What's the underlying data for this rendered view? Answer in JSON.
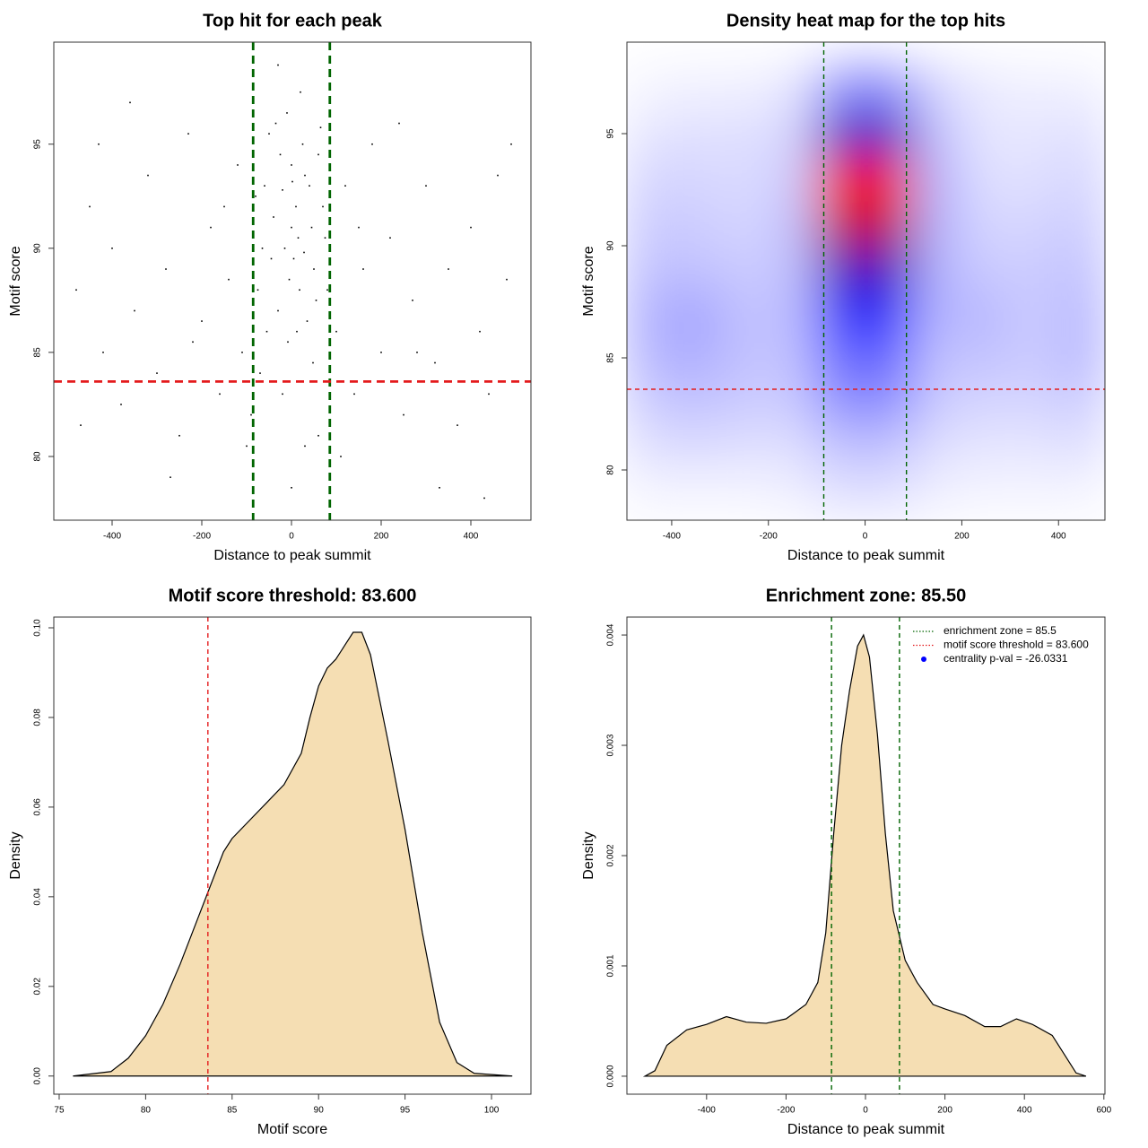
{
  "chart_data": [
    {
      "type": "scatter",
      "title": "Top hit for each peak",
      "xlabel": "Distance to peak summit",
      "ylabel": "Motif score",
      "xlim": [
        -530,
        534
      ],
      "ylim": [
        76.94,
        99.9
      ],
      "xticks": [
        -400,
        -200,
        0,
        200,
        400
      ],
      "yticks": [
        80,
        85,
        90,
        95
      ],
      "color": "#000000",
      "x": [
        -60,
        -40,
        -20,
        0,
        15,
        30,
        50,
        70,
        -75,
        -10,
        5,
        25,
        -30,
        45,
        60,
        -50,
        10,
        -5,
        35,
        -65,
        80,
        20,
        -25,
        0,
        40,
        -45,
        55,
        -15,
        12,
        65,
        -80,
        28,
        -35,
        48,
        -55,
        2,
        18,
        -8,
        75,
        -70,
        -480,
        -450,
        -420,
        -400,
        -380,
        -350,
        -320,
        -300,
        -280,
        -250,
        -230,
        -200,
        -180,
        -160,
        -140,
        -120,
        -110,
        -100,
        -470,
        -430,
        -360,
        -270,
        -220,
        -150,
        100,
        120,
        140,
        160,
        180,
        200,
        220,
        250,
        270,
        300,
        320,
        350,
        370,
        400,
        420,
        440,
        460,
        480,
        490,
        110,
        240,
        330,
        430,
        150,
        280,
        -90,
        60,
        -20,
        30,
        0,
        -30
      ],
      "y": [
        93,
        91.5,
        92.8,
        94,
        90.5,
        93.5,
        89,
        92,
        88,
        96.5,
        89.5,
        95,
        87,
        91,
        94.5,
        95.5,
        92,
        88.5,
        86.5,
        90,
        88,
        97.5,
        94.5,
        91,
        93,
        89.5,
        87.5,
        90,
        86,
        95.8,
        92.5,
        89.8,
        96,
        84.5,
        86,
        93.2,
        88,
        85.5,
        90.5,
        84,
        88,
        92,
        85,
        90,
        82.5,
        87,
        93.5,
        84,
        89,
        81,
        95.5,
        86.5,
        91,
        83,
        88.5,
        94,
        85,
        80.5,
        81.5,
        95,
        97,
        79,
        85.5,
        92,
        86,
        93,
        83,
        89,
        95,
        85,
        90.5,
        82,
        87.5,
        93,
        84.5,
        89,
        81.5,
        91,
        86,
        83,
        93.5,
        88.5,
        95,
        80,
        96,
        78.5,
        78,
        91,
        85,
        82,
        81,
        83,
        80.5,
        78.5,
        98.8
      ],
      "vlines": [
        -85.5,
        85.5
      ],
      "vline_color": "#006400",
      "hline": 83.6,
      "hline_color": "#e41a1c"
    },
    {
      "type": "heatmap",
      "title": "Density heat map for the top hits",
      "xlabel": "Distance to peak summit",
      "ylabel": "Motif score",
      "xlim": [
        -492.6,
        496
      ],
      "ylim": [
        77.76,
        99.08
      ],
      "xticks": [
        -400,
        -200,
        0,
        200,
        400
      ],
      "yticks": [
        80,
        85,
        90,
        95
      ],
      "x": [
        -450,
        -350,
        -250,
        -150,
        -50,
        50,
        150,
        250,
        350,
        450
      ],
      "y": [
        79,
        81,
        83,
        85,
        87,
        89,
        91,
        93,
        95,
        97
      ],
      "z": [
        [
          0.02,
          0.02,
          0.02,
          0.03,
          0.06,
          0.06,
          0.03,
          0.02,
          0.02,
          0.02
        ],
        [
          0.06,
          0.07,
          0.06,
          0.06,
          0.12,
          0.12,
          0.06,
          0.05,
          0.05,
          0.06
        ],
        [
          0.1,
          0.12,
          0.1,
          0.1,
          0.22,
          0.22,
          0.1,
          0.08,
          0.08,
          0.1
        ],
        [
          0.14,
          0.16,
          0.12,
          0.12,
          0.3,
          0.3,
          0.12,
          0.12,
          0.1,
          0.14
        ],
        [
          0.15,
          0.18,
          0.12,
          0.13,
          0.42,
          0.42,
          0.15,
          0.14,
          0.1,
          0.14
        ],
        [
          0.12,
          0.12,
          0.1,
          0.12,
          0.62,
          0.62,
          0.15,
          0.1,
          0.1,
          0.12
        ],
        [
          0.1,
          0.1,
          0.08,
          0.12,
          0.85,
          0.85,
          0.15,
          0.08,
          0.08,
          0.1
        ],
        [
          0.08,
          0.08,
          0.07,
          0.1,
          0.95,
          0.95,
          0.15,
          0.06,
          0.06,
          0.08
        ],
        [
          0.05,
          0.06,
          0.06,
          0.08,
          0.6,
          0.6,
          0.12,
          0.05,
          0.05,
          0.06
        ],
        [
          0.02,
          0.03,
          0.03,
          0.05,
          0.22,
          0.22,
          0.08,
          0.04,
          0.03,
          0.03
        ]
      ],
      "vlines": [
        -85.5,
        85.5
      ],
      "vline_color": "#006400",
      "hline": 83.6,
      "hline_color": "#e41a1c"
    },
    {
      "type": "area",
      "title": "Motif score threshold: 83.600",
      "xlabel": "Motif score",
      "ylabel": "Density",
      "xlim": [
        74.69,
        102.28
      ],
      "ylim": [
        -0.00405,
        0.1024
      ],
      "xticks": [
        75,
        80,
        85,
        90,
        95,
        100
      ],
      "yticks": [
        {
          "value": 0,
          "label": "0.00"
        },
        {
          "value": 0.02,
          "label": "0.02"
        },
        {
          "value": 0.04,
          "label": "0.04"
        },
        {
          "value": 0.06,
          "label": "0.06"
        },
        {
          "value": 0.08,
          "label": "0.08"
        },
        {
          "value": 0.1,
          "label": "0.10"
        }
      ],
      "color": "#f5deb3",
      "x": [
        75.8,
        78,
        79,
        80,
        81,
        82,
        83,
        84,
        84.5,
        85,
        86,
        87,
        88,
        89,
        89.5,
        90,
        90.5,
        91,
        91.5,
        92,
        92.5,
        93,
        94,
        95,
        96,
        97,
        98,
        99,
        101.2
      ],
      "y": [
        0,
        0.001,
        0.004,
        0.009,
        0.016,
        0.025,
        0.035,
        0.045,
        0.05,
        0.053,
        0.057,
        0.061,
        0.065,
        0.072,
        0.08,
        0.087,
        0.091,
        0.093,
        0.096,
        0.099,
        0.099,
        0.094,
        0.075,
        0.055,
        0.032,
        0.012,
        0.003,
        0.0006,
        0
      ],
      "vlines": [
        83.6
      ],
      "vline_color": "#e41a1c"
    },
    {
      "type": "area",
      "title": "Enrichment zone: 85.50",
      "xlabel": "Distance to peak summit",
      "ylabel": "Density",
      "xlim": [
        -600.5,
        602.7
      ],
      "ylim": [
        -0.000163,
        0.004163
      ],
      "xticks": [
        -400,
        -200,
        0,
        200,
        400,
        600
      ],
      "yticks": [
        {
          "value": 0,
          "label": "0.000"
        },
        {
          "value": 0.001,
          "label": "0.001"
        },
        {
          "value": 0.002,
          "label": "0.002"
        },
        {
          "value": 0.003,
          "label": "0.003"
        },
        {
          "value": 0.004,
          "label": "0.004"
        }
      ],
      "color": "#f5deb3",
      "x": [
        -555,
        -530,
        -500,
        -450,
        -400,
        -350,
        -300,
        -250,
        -200,
        -150,
        -120,
        -100,
        -80,
        -60,
        -40,
        -20,
        -5,
        10,
        30,
        50,
        70,
        100,
        130,
        170,
        200,
        250,
        300,
        340,
        380,
        420,
        470,
        500,
        530,
        555
      ],
      "y": [
        0,
        5e-05,
        0.00028,
        0.00042,
        0.00047,
        0.00054,
        0.00049,
        0.00048,
        0.00052,
        0.00065,
        0.00085,
        0.0013,
        0.0022,
        0.003,
        0.0035,
        0.0039,
        0.004,
        0.0038,
        0.0031,
        0.0022,
        0.0015,
        0.00105,
        0.00085,
        0.00065,
        0.00061,
        0.00055,
        0.00045,
        0.00045,
        0.00052,
        0.00047,
        0.00037,
        0.0002,
        3e-05,
        0
      ],
      "vlines": [
        -85.5,
        85.5
      ],
      "vline_color": "#006400",
      "legend": [
        {
          "label": "enrichment zone = 85.5",
          "color": "#006400",
          "style": "dotted"
        },
        {
          "label": "motif score threshold = 83.600",
          "color": "#e41a1c",
          "style": "dotted"
        },
        {
          "label": "centrality p-val = -26.0331",
          "color": "#0000ff",
          "style": "point"
        }
      ]
    }
  ]
}
